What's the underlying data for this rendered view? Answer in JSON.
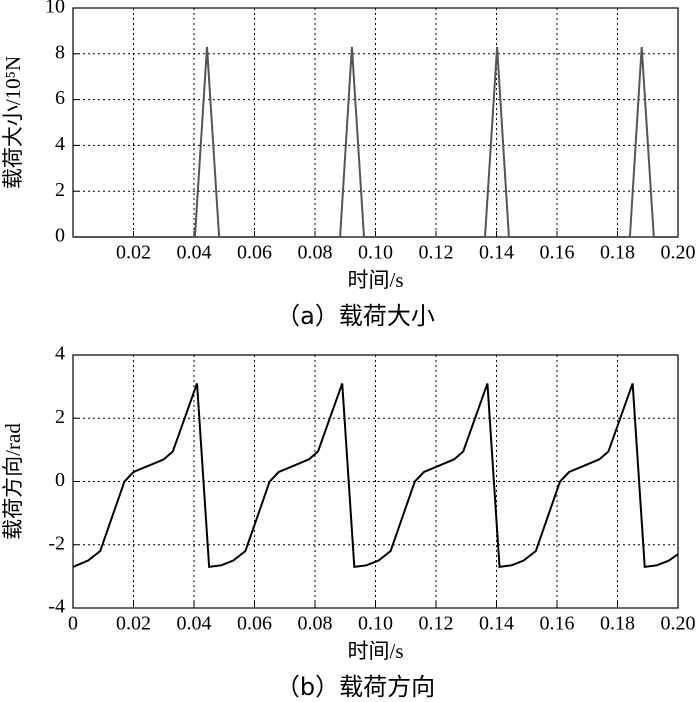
{
  "chart_data": [
    {
      "type": "line",
      "caption": "（a）载荷大小",
      "xlabel": "时间/s",
      "ylabel": "载荷大小/10⁵N",
      "x": [
        0,
        0.0403,
        0.0443,
        0.0483,
        0.0883,
        0.0922,
        0.0962,
        0.1362,
        0.1402,
        0.1441,
        0.1841,
        0.188,
        0.192,
        0.2
      ],
      "series": [
        {
          "color": "#555555",
          "values": [
            0,
            0,
            8.3,
            0,
            0,
            8.3,
            0,
            0,
            8.3,
            0,
            0,
            8.3,
            0,
            0
          ]
        }
      ],
      "xlim": [
        0,
        0.2
      ],
      "xticks": [
        0.02,
        0.04,
        0.06,
        0.08,
        {
          "value": 0.1,
          "label": "0.10"
        },
        0.12,
        0.14,
        0.16,
        0.18,
        {
          "value": 0.2,
          "label": "0.20"
        }
      ],
      "ylim": [
        0,
        10
      ],
      "yticks": [
        0,
        2,
        4,
        6,
        8,
        10
      ],
      "grid": true
    },
    {
      "type": "line",
      "caption": "（b）载荷方向",
      "xlabel": "时间/s",
      "ylabel": "载荷方向/rad",
      "x": [
        0,
        0.005,
        0.009,
        0.017,
        0.02,
        0.025,
        0.03,
        0.033,
        0.041,
        0.045,
        0.049,
        0.053,
        0.057,
        0.065,
        0.068,
        0.073,
        0.078,
        0.081,
        0.089,
        0.093,
        0.097,
        0.101,
        0.105,
        0.113,
        0.116,
        0.121,
        0.126,
        0.129,
        0.137,
        0.141,
        0.145,
        0.149,
        0.153,
        0.161,
        0.164,
        0.169,
        0.174,
        0.177,
        0.185,
        0.189,
        0.193,
        0.197,
        0.2
      ],
      "series": [
        {
          "color": "#000000",
          "values": [
            -2.7,
            -2.5,
            -2.2,
            0,
            0.3,
            0.5,
            0.7,
            0.95,
            3.1,
            -2.7,
            -2.65,
            -2.5,
            -2.2,
            0,
            0.3,
            0.5,
            0.7,
            0.95,
            3.1,
            -2.7,
            -2.65,
            -2.5,
            -2.2,
            0,
            0.3,
            0.5,
            0.7,
            0.95,
            3.1,
            -2.7,
            -2.65,
            -2.5,
            -2.2,
            0,
            0.3,
            0.5,
            0.7,
            0.95,
            3.1,
            -2.7,
            -2.65,
            -2.5,
            -2.3
          ]
        }
      ],
      "xlim": [
        0,
        0.2
      ],
      "xticks": [
        0,
        0.02,
        0.04,
        0.06,
        0.08,
        {
          "value": 0.1,
          "label": "0.10"
        },
        0.12,
        0.14,
        0.16,
        0.18,
        {
          "value": 0.2,
          "label": "0.20"
        }
      ],
      "ylim": [
        -4,
        4
      ],
      "yticks": [
        -4,
        -2,
        0,
        2,
        4
      ],
      "grid": true
    }
  ]
}
